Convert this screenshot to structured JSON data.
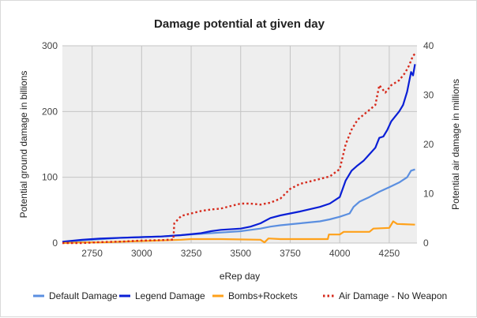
{
  "chart_data": {
    "type": "line",
    "title": "Damage potential at given day",
    "xlabel": "eRep day",
    "ylabel_left": "Potential ground damage in billions",
    "ylabel_right": "Potential air damage in millions",
    "xlim": [
      2600,
      4390
    ],
    "ylim_left": [
      0,
      300
    ],
    "ylim_right": [
      0,
      40
    ],
    "x_ticks": [
      2750,
      3000,
      3250,
      3500,
      3750,
      4000,
      4250
    ],
    "y_ticks_left": [
      0,
      100,
      200,
      300
    ],
    "y_ticks_right": [
      0,
      10,
      20,
      30,
      40
    ],
    "grid": true,
    "legend_position": "bottom",
    "series": [
      {
        "name": "Default Damage",
        "axis": "left",
        "color": "#5b8fe0",
        "dash": "solid",
        "points": [
          [
            2600,
            1
          ],
          [
            2700,
            4
          ],
          [
            2800,
            6
          ],
          [
            2900,
            8
          ],
          [
            3000,
            9
          ],
          [
            3100,
            10
          ],
          [
            3200,
            12
          ],
          [
            3300,
            14
          ],
          [
            3400,
            16
          ],
          [
            3500,
            18
          ],
          [
            3550,
            20
          ],
          [
            3600,
            22
          ],
          [
            3650,
            25
          ],
          [
            3700,
            27
          ],
          [
            3800,
            30
          ],
          [
            3900,
            33
          ],
          [
            3950,
            36
          ],
          [
            4000,
            40
          ],
          [
            4050,
            45
          ],
          [
            4070,
            55
          ],
          [
            4100,
            63
          ],
          [
            4150,
            70
          ],
          [
            4200,
            78
          ],
          [
            4250,
            85
          ],
          [
            4300,
            92
          ],
          [
            4340,
            100
          ],
          [
            4360,
            110
          ],
          [
            4380,
            112
          ]
        ]
      },
      {
        "name": "Legend Damage",
        "axis": "left",
        "color": "#0a1fd6",
        "dash": "solid",
        "points": [
          [
            2600,
            2
          ],
          [
            2700,
            5
          ],
          [
            2800,
            7
          ],
          [
            2900,
            8
          ],
          [
            3000,
            9
          ],
          [
            3100,
            10
          ],
          [
            3200,
            12
          ],
          [
            3300,
            15
          ],
          [
            3350,
            18
          ],
          [
            3400,
            20
          ],
          [
            3500,
            22
          ],
          [
            3550,
            25
          ],
          [
            3600,
            30
          ],
          [
            3650,
            38
          ],
          [
            3700,
            42
          ],
          [
            3800,
            48
          ],
          [
            3900,
            55
          ],
          [
            3950,
            60
          ],
          [
            4000,
            70
          ],
          [
            4030,
            95
          ],
          [
            4060,
            110
          ],
          [
            4090,
            118
          ],
          [
            4120,
            125
          ],
          [
            4150,
            135
          ],
          [
            4180,
            145
          ],
          [
            4200,
            160
          ],
          [
            4220,
            162
          ],
          [
            4240,
            172
          ],
          [
            4260,
            185
          ],
          [
            4300,
            200
          ],
          [
            4320,
            210
          ],
          [
            4340,
            230
          ],
          [
            4360,
            260
          ],
          [
            4370,
            255
          ],
          [
            4380,
            272
          ]
        ]
      },
      {
        "name": "Bombs+Rockets",
        "axis": "left",
        "color": "#ffa11a",
        "dash": "solid",
        "points": [
          [
            2600,
            0
          ],
          [
            2700,
            1
          ],
          [
            2800,
            1
          ],
          [
            2900,
            2
          ],
          [
            3000,
            3
          ],
          [
            3100,
            4
          ],
          [
            3200,
            5
          ],
          [
            3250,
            6
          ],
          [
            3400,
            6
          ],
          [
            3600,
            5
          ],
          [
            3620,
            1
          ],
          [
            3640,
            7
          ],
          [
            3700,
            6
          ],
          [
            3800,
            6
          ],
          [
            3940,
            6
          ],
          [
            3945,
            13
          ],
          [
            4000,
            13
          ],
          [
            4020,
            17
          ],
          [
            4100,
            17
          ],
          [
            4150,
            17
          ],
          [
            4170,
            22
          ],
          [
            4250,
            23
          ],
          [
            4270,
            33
          ],
          [
            4290,
            29
          ],
          [
            4380,
            28
          ]
        ]
      },
      {
        "name": "Air Damage - No Weapon",
        "axis": "right",
        "color": "#d62a1c",
        "dash": "dotted",
        "points": [
          [
            2600,
            0
          ],
          [
            2700,
            0
          ],
          [
            2800,
            0.2
          ],
          [
            2900,
            0.3
          ],
          [
            3000,
            0.5
          ],
          [
            3100,
            0.6
          ],
          [
            3160,
            0.7
          ],
          [
            3165,
            4
          ],
          [
            3200,
            5.5
          ],
          [
            3250,
            6
          ],
          [
            3300,
            6.5
          ],
          [
            3350,
            6.8
          ],
          [
            3400,
            7
          ],
          [
            3450,
            7.5
          ],
          [
            3500,
            8
          ],
          [
            3550,
            8
          ],
          [
            3600,
            7.8
          ],
          [
            3650,
            8.2
          ],
          [
            3700,
            9
          ],
          [
            3750,
            11
          ],
          [
            3800,
            12
          ],
          [
            3850,
            12.5
          ],
          [
            3900,
            13
          ],
          [
            3950,
            13.5
          ],
          [
            4000,
            15
          ],
          [
            4030,
            20
          ],
          [
            4060,
            23
          ],
          [
            4090,
            25
          ],
          [
            4120,
            26
          ],
          [
            4150,
            27
          ],
          [
            4180,
            28
          ],
          [
            4200,
            32
          ],
          [
            4230,
            30.5
          ],
          [
            4260,
            32
          ],
          [
            4300,
            33
          ],
          [
            4330,
            34.5
          ],
          [
            4350,
            36
          ],
          [
            4370,
            38
          ],
          [
            4385,
            38.5
          ]
        ]
      }
    ]
  }
}
